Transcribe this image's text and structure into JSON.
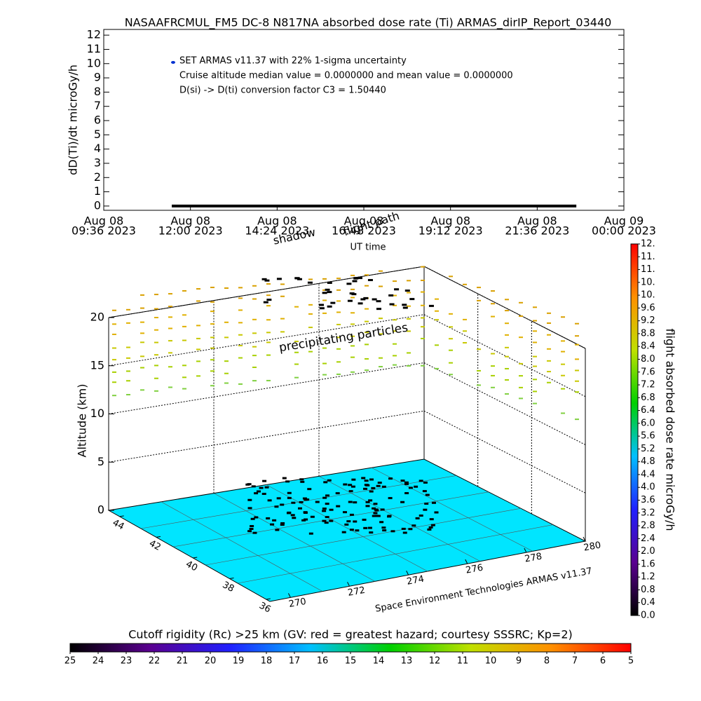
{
  "chart_data": [
    {
      "type": "line",
      "title": "NASAAFRCMUL_FM5 DC-8   N817NA absorbed dose rate (Ti) ARMAS_dirIP_Report_03440",
      "ylabel": "dD(Ti)/dt microGy/h",
      "xlabel": "UT time",
      "annotations": [
        "Cruise altitude median value = 0.0000000 and mean value = 0.0000000",
        "D(si) -> D(ti) conversion factor C3 = 1.50440"
      ],
      "xlim": [
        "2023-08-08 09:36",
        "2023-08-09 00:00"
      ],
      "xticks": [
        {
          "value": "2023-08-08 09:36",
          "label": [
            "Aug 08",
            "09:36 2023"
          ]
        },
        {
          "value": "2023-08-08 12:00",
          "label": [
            "Aug 08",
            "12:00 2023"
          ]
        },
        {
          "value": "2023-08-08 14:24",
          "label": [
            "Aug 08",
            "14:24 2023"
          ]
        },
        {
          "value": "2023-08-08 16:48",
          "label": [
            "Aug 08",
            "16:48 2023"
          ]
        },
        {
          "value": "2023-08-08 19:12",
          "label": [
            "Aug 08",
            "19:12 2023"
          ]
        },
        {
          "value": "2023-08-08 21:36",
          "label": [
            "Aug 08",
            "21:36 2023"
          ]
        },
        {
          "value": "2023-08-09 00:00",
          "label": [
            "Aug 09",
            "00:00 2023"
          ]
        }
      ],
      "ylim": [
        -0.3,
        12.4
      ],
      "yticks": [
        0,
        1,
        2,
        3,
        4,
        5,
        6,
        7,
        8,
        9,
        10,
        11,
        12
      ],
      "x": [
        "2023-08-08 11:29",
        "2023-08-08 12:30",
        "2023-08-08 13:30",
        "2023-08-08 14:30",
        "2023-08-08 15:30",
        "2023-08-08 16:30",
        "2023-08-08 17:30",
        "2023-08-08 18:30",
        "2023-08-08 19:30",
        "2023-08-08 20:30",
        "2023-08-08 21:30",
        "2023-08-08 22:41"
      ],
      "series": [
        {
          "name": "SET ARMAS v11.37 with 22% 1-sigma uncertainty",
          "color": "#000000",
          "marker_color": "#0030d0",
          "values": [
            0,
            0,
            0,
            0,
            0,
            0,
            0,
            0,
            0,
            0,
            0,
            0
          ]
        }
      ]
    },
    {
      "type": "scene3d",
      "zlabel": "Altitude (km)",
      "zlim": [
        0,
        20
      ],
      "zticks": [
        0,
        5,
        10,
        15,
        20
      ],
      "latlim": [
        44.6,
        35.8
      ],
      "latticks": [
        44,
        42,
        40,
        38,
        36
      ],
      "lonlim": [
        269.3,
        280
      ],
      "lonticks": [
        270,
        272,
        274,
        276,
        278,
        280
      ],
      "annotations": [
        "flight path",
        "shadow",
        "precipitating particles"
      ],
      "credit": "Space Environment Technologies ARMAS v11.37",
      "surface_color": "#00e5ff"
    },
    {
      "type": "colorbar",
      "orientation": "vertical",
      "label": "flight absorbed dose rate microGy/h",
      "lim": [
        0,
        11.6
      ],
      "colors": [
        "#000000",
        "#5a0090",
        "#2020ff",
        "#00c0ff",
        "#00d000",
        "#c0e000",
        "#ff9000",
        "#ff0000"
      ],
      "ticks": [
        {
          "value": 0,
          "label": "0.0"
        },
        0.4,
        0.8,
        1.2,
        1.6,
        {
          "value": 2,
          "label": "2.0"
        },
        2.4,
        2.8,
        3.2,
        3.6,
        {
          "value": 4,
          "label": "4.0"
        },
        4.4,
        4.8,
        5.2,
        5.6,
        {
          "value": 6,
          "label": "6.0"
        },
        6.4,
        6.8,
        7.2,
        7.6,
        {
          "value": 8,
          "label": "8.0"
        },
        8.4,
        8.8,
        9.2,
        9.6,
        {
          "value": 10,
          "label": "10."
        },
        {
          "value": 10.4,
          "label": "10."
        },
        {
          "value": 10.8,
          "label": "11."
        },
        {
          "value": 11.2,
          "label": "11."
        },
        {
          "value": 11.6,
          "label": "12."
        }
      ]
    },
    {
      "type": "colorbar",
      "orientation": "horizontal",
      "label": "Cutoff rigidity (Rc) >25 km (GV: red = greatest hazard; courtesy SSSRC; Kp=2)",
      "lim": [
        25,
        5
      ],
      "colors": [
        "#000000",
        "#5a0090",
        "#2020ff",
        "#00c0ff",
        "#00d000",
        "#c0e000",
        "#ff9000",
        "#ff0000"
      ],
      "ticks": [
        25,
        24,
        23,
        22,
        21,
        20,
        19,
        18,
        17,
        16,
        15,
        14,
        13,
        12,
        11,
        10,
        9,
        8,
        7,
        6,
        5
      ]
    }
  ]
}
